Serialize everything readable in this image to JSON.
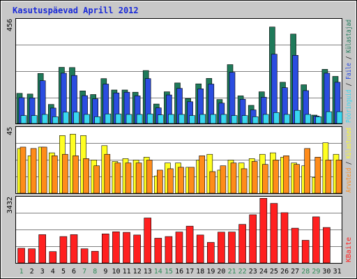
{
  "title": "Kasutuspäevad Aprill 2012",
  "colors": {
    "frame": "#c8c8c8",
    "panel_bg": "#ffffff",
    "grid": "#808080",
    "title": "#1a2ad8",
    "weekday": "#000000",
    "weekend": "#2e8b57",
    "visitors": "#1f7a5a",
    "visits": "#2b4de0",
    "pages": "#39d8f0",
    "hits": "#ffff22",
    "bytes_fill": "#ff2020",
    "slash": "#000000"
  },
  "chart_data": [
    {
      "type": "bar",
      "name": "top",
      "ymax_label": "456",
      "ylim": [
        0,
        456
      ],
      "categories": [
        "1",
        "2",
        "3",
        "4",
        "5",
        "6",
        "7",
        "8",
        "9",
        "10",
        "11",
        "12",
        "13",
        "14",
        "15",
        "16",
        "17",
        "18",
        "19",
        "20",
        "21",
        "22",
        "23",
        "24",
        "25",
        "26",
        "27",
        "28",
        "29",
        "30",
        "31"
      ],
      "weekend_days": [
        "1",
        "7",
        "8",
        "14",
        "15",
        "21",
        "22",
        "28",
        "29"
      ],
      "series": [
        {
          "name": "Külastajad",
          "color": "#1f7a5a",
          "values": [
            133,
            130,
            221,
            84,
            248,
            247,
            144,
            128,
            198,
            148,
            148,
            138,
            234,
            86,
            140,
            179,
            110,
            175,
            199,
            106,
            260,
            122,
            80,
            140,
            426,
            182,
            395,
            171,
            37,
            239,
            208
          ]
        },
        {
          "name": "Faile",
          "color": "#2b4de0",
          "values": [
            114,
            113,
            189,
            68,
            222,
            212,
            123,
            109,
            174,
            135,
            138,
            122,
            198,
            69,
            126,
            155,
            96,
            153,
            174,
            90,
            226,
            107,
            60,
            116,
            306,
            158,
            301,
            145,
            33,
            222,
            182
          ]
        },
        {
          "name": "Pööringuid",
          "color": "#39d8f0",
          "values": [
            35,
            35,
            40,
            30,
            50,
            50,
            40,
            30,
            42,
            42,
            40,
            40,
            42,
            38,
            40,
            40,
            35,
            40,
            40,
            40,
            35,
            35,
            30,
            40,
            48,
            40,
            58,
            40,
            30,
            52,
            52
          ]
        }
      ],
      "legend": [
        "Pööringuid",
        "Faile",
        "Külastajad"
      ]
    },
    {
      "type": "bar",
      "name": "middle",
      "ymax_label": "45",
      "ylim": [
        0,
        45
      ],
      "categories": [
        "1",
        "2",
        "3",
        "4",
        "5",
        "6",
        "7",
        "8",
        "9",
        "10",
        "11",
        "12",
        "13",
        "14",
        "15",
        "16",
        "17",
        "18",
        "19",
        "20",
        "21",
        "22",
        "23",
        "24",
        "25",
        "26",
        "27",
        "28",
        "29",
        "30",
        "31"
      ],
      "series": [
        {
          "name": "Külastused",
          "color": "#ffff22",
          "values": [
            31,
            26,
            32,
            28,
            40,
            41,
            40,
            23,
            33,
            22,
            24,
            23,
            25,
            12,
            21,
            21,
            18,
            23,
            27,
            16,
            23,
            21,
            24,
            27,
            28,
            25,
            21,
            19,
            11,
            35,
            27
          ]
        },
        {
          "name": "Arvuteid",
          "color": "#ff8c1a",
          "values": [
            32,
            31,
            32,
            26,
            27,
            26,
            24,
            19,
            27,
            21,
            21,
            21,
            23,
            16,
            17,
            18,
            18,
            26,
            15,
            19,
            21,
            17,
            22,
            20,
            23,
            26,
            20,
            31,
            25,
            23,
            23
          ]
        }
      ],
      "legend": [
        "Arvuteid",
        "Külastused"
      ]
    },
    {
      "type": "bar",
      "name": "bottom",
      "ymax_label": "3432",
      "ylim": [
        0,
        3432
      ],
      "categories": [
        "1",
        "2",
        "3",
        "4",
        "5",
        "6",
        "7",
        "8",
        "9",
        "10",
        "11",
        "12",
        "13",
        "14",
        "15",
        "16",
        "17",
        "18",
        "19",
        "20",
        "21",
        "22",
        "23",
        "24",
        "25",
        "26",
        "27",
        "28",
        "29",
        "30",
        "31"
      ],
      "series": [
        {
          "name": "KBaite",
          "color": "#ff2020",
          "values": [
            780,
            750,
            1500,
            600,
            1400,
            1500,
            750,
            620,
            1540,
            1650,
            1620,
            1480,
            2380,
            1310,
            1400,
            1640,
            1950,
            1480,
            1090,
            1630,
            1640,
            2040,
            2550,
            3420,
            3150,
            2660,
            1840,
            1200,
            2440,
            1880,
            0
          ]
        }
      ],
      "legend": [
        "KBaite"
      ]
    }
  ]
}
